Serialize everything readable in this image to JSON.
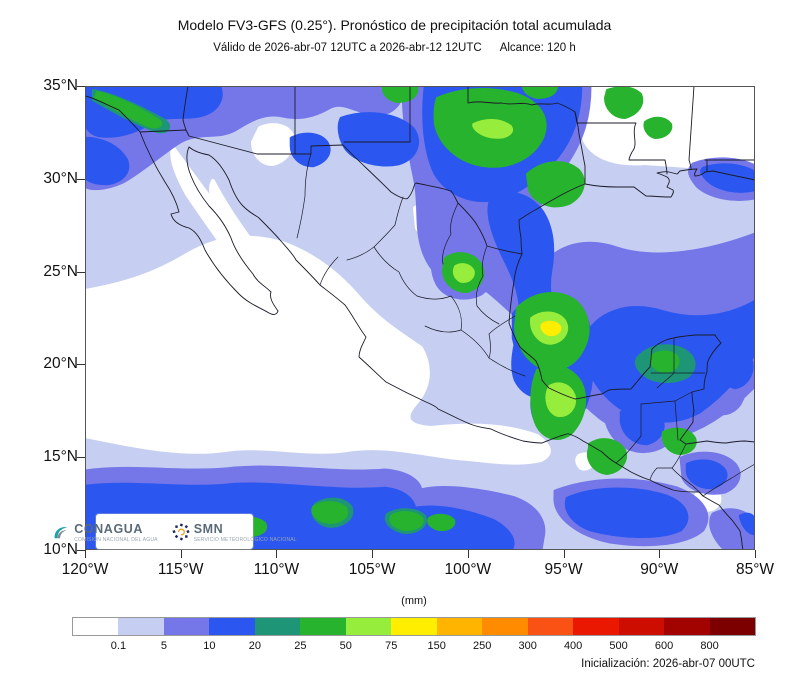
{
  "header": {
    "title": "Modelo FV3-GFS (0.25°). Pronóstico de precipitación total acumulada",
    "subtitle_valid": "Válido de 2026-abr-07 12UTC a 2026-abr-12 12UTC",
    "subtitle_alcance": "Alcance: 120 h"
  },
  "map": {
    "lat_labels": [
      "35°N",
      "30°N",
      "25°N",
      "20°N",
      "15°N",
      "10°N"
    ],
    "lon_labels": [
      "120°W",
      "115°W",
      "110°W",
      "105°W",
      "100°W",
      "95°W",
      "90°W",
      "85°W"
    ]
  },
  "logos": {
    "conagua": "CONAGUA",
    "conagua_sub": "COMISIÓN NACIONAL DEL AGUA",
    "smn": "SMN",
    "smn_sub": "SERVICIO METEOROLÓGICO NACIONAL"
  },
  "colorbar": {
    "units": "(mm)",
    "labels": [
      "0.1",
      "5",
      "10",
      "20",
      "25",
      "50",
      "75",
      "150",
      "250",
      "300",
      "400",
      "500",
      "600",
      "800"
    ],
    "colors": [
      "#ffffff",
      "#c6cff2",
      "#7577e8",
      "#2b57f0",
      "#1f9577",
      "#27b32e",
      "#97ed3c",
      "#ffee00",
      "#ffb400",
      "#ff8c00",
      "#fa5214",
      "#ea1800",
      "#cd0d00",
      "#a30300",
      "#7c0000"
    ]
  },
  "footer": {
    "init": "Inicialización: 2026-abr-07 00UTC"
  }
}
